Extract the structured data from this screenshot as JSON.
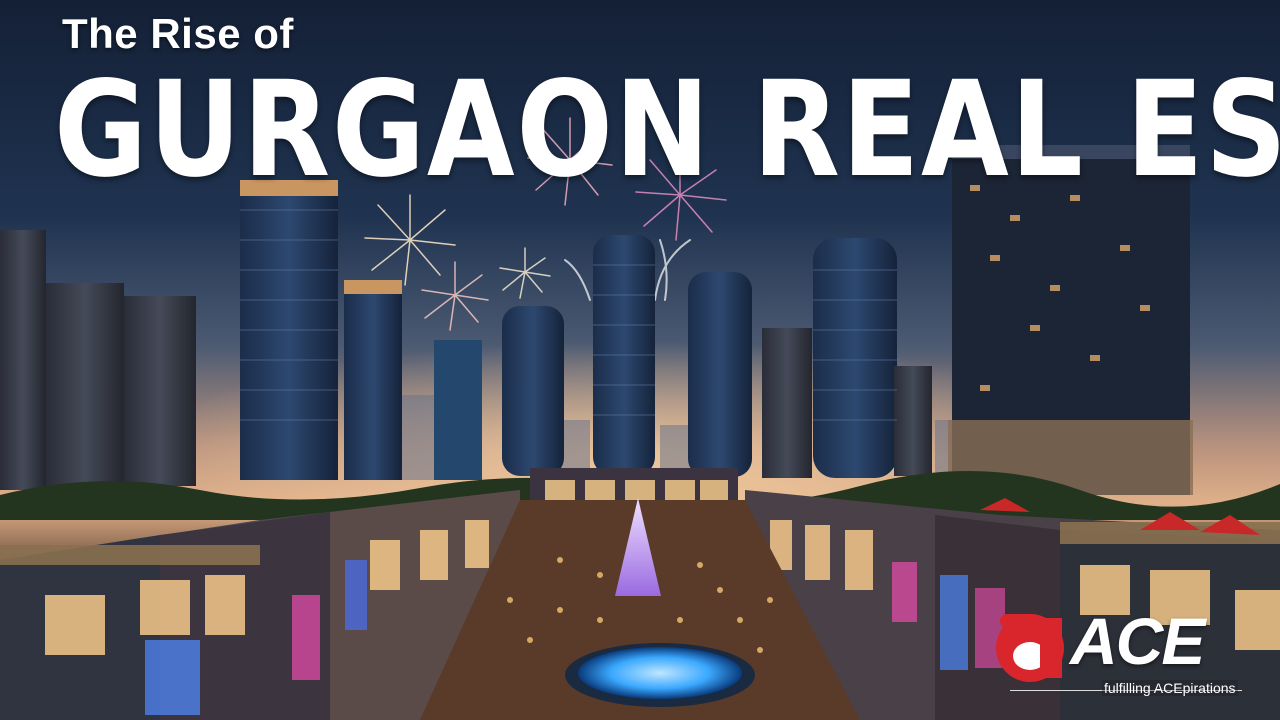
{
  "title": {
    "line1": "The Rise of",
    "line2": "GURGAON REAL ESTATE"
  },
  "logo": {
    "mark": "a",
    "wordmark": "ACE",
    "tagline": "fulfilling ACEpirations"
  },
  "colors": {
    "logo_red": "#d8262c",
    "title_text": "#ffffff",
    "sky_top": "#142036",
    "sunset": "#e0b089",
    "fountain": "#3aa8ff",
    "tree": "#c9a0ff"
  }
}
